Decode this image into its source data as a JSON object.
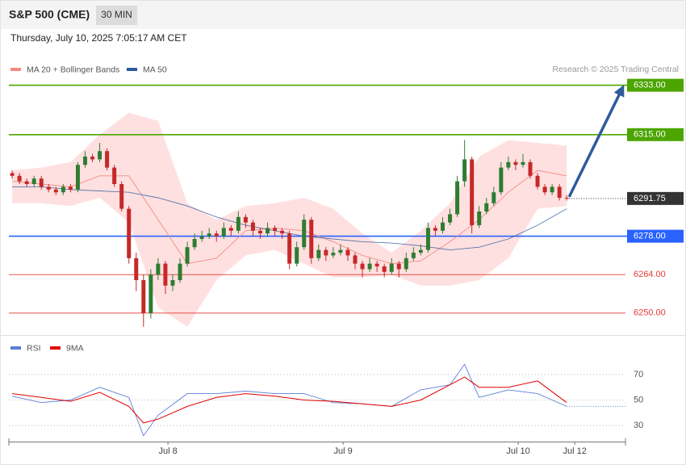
{
  "header": {
    "symbol": "S&P 500 (CME)",
    "interval": "30 MIN",
    "timestamp": "Thursday, July 10, 2025 7:05:17 AM CET"
  },
  "chart_data": [
    {
      "type": "candlestick",
      "legend": [
        {
          "name": "MA 20 + Bollinger Bands",
          "color": "#f28b82"
        },
        {
          "name": "MA 50",
          "color": "#2f5b9c"
        }
      ],
      "credit": "Research © 2025 Trading Central",
      "up_color": "#2e7d32",
      "down_color": "#c62828",
      "xlim": [
        -0.9,
        168.1
      ],
      "ylim": [
        6242,
        6337
      ],
      "x": [
        0,
        2,
        4,
        6,
        8,
        10,
        12,
        14,
        16,
        18,
        20,
        22,
        24,
        26,
        28,
        30,
        32,
        34,
        36,
        38,
        40,
        42,
        44,
        46,
        48,
        50,
        52,
        54,
        56,
        58,
        60,
        62,
        64,
        66,
        68,
        70,
        72,
        74,
        76,
        78,
        80,
        82,
        84,
        86,
        88,
        90,
        92,
        94,
        96,
        98,
        100,
        102,
        104,
        106,
        108,
        110,
        112,
        114,
        116,
        118,
        120,
        122,
        124,
        126,
        128,
        130,
        132,
        134,
        136,
        138,
        140,
        142,
        144,
        146,
        148,
        150,
        152
      ],
      "ohlc": [
        [
          6301,
          6302,
          6299,
          6300
        ],
        [
          6300,
          6301,
          6297,
          6298
        ],
        [
          6298,
          6299,
          6296,
          6297
        ],
        [
          6297,
          6300,
          6296,
          6299
        ],
        [
          6299,
          6300,
          6295,
          6296
        ],
        [
          6296,
          6297,
          6294,
          6295
        ],
        [
          6295,
          6296,
          6293,
          6294
        ],
        [
          6294,
          6297,
          6293,
          6296
        ],
        [
          6296,
          6297,
          6294,
          6295
        ],
        [
          6295,
          6305,
          6294,
          6304
        ],
        [
          6304,
          6309,
          6303,
          6307
        ],
        [
          6307,
          6308,
          6305,
          6306
        ],
        [
          6306,
          6312,
          6305,
          6309
        ],
        [
          6309,
          6310,
          6302,
          6303
        ],
        [
          6303,
          6304,
          6296,
          6297
        ],
        [
          6297,
          6298,
          6287,
          6288
        ],
        [
          6288,
          6289,
          6268,
          6270
        ],
        [
          6270,
          6272,
          6258,
          6262
        ],
        [
          6262,
          6264,
          6245,
          6250
        ],
        [
          6250,
          6266,
          6248,
          6264
        ],
        [
          6264,
          6270,
          6262,
          6268
        ],
        [
          6268,
          6269,
          6257,
          6260
        ],
        [
          6260,
          6264,
          6258,
          6262
        ],
        [
          6262,
          6270,
          6261,
          6268
        ],
        [
          6268,
          6276,
          6267,
          6274
        ],
        [
          6274,
          6279,
          6273,
          6277
        ],
        [
          6277,
          6280,
          6276,
          6278
        ],
        [
          6278,
          6281,
          6277,
          6279
        ],
        [
          6279,
          6280,
          6276,
          6278
        ],
        [
          6278,
          6283,
          6277,
          6281
        ],
        [
          6281,
          6282,
          6278,
          6280
        ],
        [
          6280,
          6287,
          6279,
          6285
        ],
        [
          6285,
          6286,
          6281,
          6283
        ],
        [
          6283,
          6284,
          6278,
          6280
        ],
        [
          6280,
          6281,
          6277,
          6279
        ],
        [
          6279,
          6283,
          6278,
          6281
        ],
        [
          6281,
          6282,
          6278,
          6280
        ],
        [
          6280,
          6281,
          6277,
          6279
        ],
        [
          6279,
          6280,
          6266,
          6268
        ],
        [
          6268,
          6276,
          6267,
          6274
        ],
        [
          6274,
          6286,
          6273,
          6284
        ],
        [
          6284,
          6285,
          6268,
          6270
        ],
        [
          6270,
          6275,
          6269,
          6273
        ],
        [
          6273,
          6274,
          6269,
          6271
        ],
        [
          6271,
          6274,
          6270,
          6272
        ],
        [
          6272,
          6275,
          6271,
          6273
        ],
        [
          6273,
          6274,
          6269,
          6271
        ],
        [
          6271,
          6272,
          6266,
          6268
        ],
        [
          6268,
          6269,
          6263,
          6266
        ],
        [
          6266,
          6270,
          6265,
          6268
        ],
        [
          6268,
          6269,
          6265,
          6267
        ],
        [
          6267,
          6268,
          6263,
          6265
        ],
        [
          6265,
          6270,
          6264,
          6268
        ],
        [
          6268,
          6269,
          6263,
          6266
        ],
        [
          6266,
          6272,
          6265,
          6270
        ],
        [
          6270,
          6274,
          6269,
          6272
        ],
        [
          6272,
          6275,
          6271,
          6273
        ],
        [
          6273,
          6283,
          6272,
          6281
        ],
        [
          6281,
          6282,
          6278,
          6280
        ],
        [
          6280,
          6285,
          6279,
          6283
        ],
        [
          6283,
          6288,
          6282,
          6286
        ],
        [
          6286,
          6300,
          6285,
          6298
        ],
        [
          6298,
          6313,
          6296,
          6306
        ],
        [
          6306,
          6307,
          6279,
          6282
        ],
        [
          6282,
          6289,
          6281,
          6287
        ],
        [
          6287,
          6292,
          6286,
          6290
        ],
        [
          6290,
          6296,
          6289,
          6294
        ],
        [
          6294,
          6305,
          6293,
          6303
        ],
        [
          6303,
          6307,
          6302,
          6305
        ],
        [
          6305,
          6306,
          6302,
          6304
        ],
        [
          6304,
          6308,
          6303,
          6305
        ],
        [
          6305,
          6306,
          6299,
          6300
        ],
        [
          6300,
          6301,
          6295,
          6296
        ],
        [
          6296,
          6297,
          6293,
          6294
        ],
        [
          6294,
          6297,
          6293,
          6296
        ],
        [
          6296,
          6297,
          6291,
          6292
        ],
        [
          6292,
          6293,
          6291,
          6291.75
        ]
      ],
      "ind_x": [
        0,
        8,
        16,
        24,
        32,
        40,
        48,
        56,
        64,
        72,
        80,
        88,
        96,
        104,
        112,
        120,
        128,
        136,
        144,
        152
      ],
      "ma20": [
        6298,
        6297,
        6296,
        6300,
        6300,
        6284,
        6268,
        6270,
        6280,
        6281,
        6280,
        6276,
        6271,
        6268,
        6269,
        6276,
        6284,
        6294,
        6302,
        6300
      ],
      "ma50": [
        6296,
        6296,
        6295,
        6294.5,
        6294,
        6292,
        6289,
        6285,
        6282,
        6280,
        6278,
        6277,
        6276,
        6275.5,
        6274.5,
        6273,
        6274,
        6277,
        6282,
        6288
      ],
      "bb_upper": [
        6302,
        6303,
        6305,
        6315,
        6323,
        6320,
        6290,
        6284,
        6289,
        6290,
        6292,
        6288,
        6279,
        6272,
        6280,
        6290,
        6307,
        6313,
        6312,
        6311
      ],
      "bb_lower": [
        6290,
        6290,
        6289,
        6292,
        6283,
        6252,
        6245,
        6262,
        6271,
        6273,
        6268,
        6263,
        6263,
        6264,
        6260,
        6260,
        6262,
        6270,
        6288,
        6289
      ],
      "band_color": "#ffd6d6",
      "levels": [
        {
          "value": 6333,
          "label": "6333.00",
          "color": "#4ca500",
          "box": true
        },
        {
          "value": 6315,
          "label": "6315.00",
          "color": "#4ca500",
          "box": true
        },
        {
          "value": 6278,
          "label": "6278.00",
          "color": "#2962ff",
          "box": true
        },
        {
          "value": 6264,
          "label": "6264.00",
          "color": "#e53935",
          "box": false
        },
        {
          "value": 6250,
          "label": "6250.00",
          "color": "#e53935",
          "box": false
        }
      ],
      "last_price": 6291.75
    },
    {
      "type": "line",
      "xlim": [
        -0.9,
        168.1
      ],
      "ylim": [
        18,
        82
      ],
      "yticks": [
        70,
        50,
        30
      ],
      "xticks": [
        {
          "value": 42.7,
          "label": "Jul 8"
        },
        {
          "value": 90.7,
          "label": "Jul 9"
        },
        {
          "value": 138.7,
          "label": "Jul 10"
        },
        {
          "value": 154.2,
          "label": "Jul 12"
        }
      ],
      "x": [
        0,
        8,
        16,
        24,
        32,
        36,
        40,
        48,
        56,
        64,
        72,
        80,
        88,
        96,
        104,
        112,
        120,
        124,
        128,
        136,
        144,
        152
      ],
      "series": [
        {
          "name": "RSI",
          "color": "#5b7fd6",
          "values": [
            53,
            48,
            50,
            60,
            52,
            22,
            38,
            55,
            55,
            57,
            55,
            55,
            48,
            47,
            45,
            58,
            62,
            78,
            52,
            58,
            55,
            45
          ]
        },
        {
          "name": "9MA",
          "color": "#e00000",
          "values": [
            55,
            52,
            49,
            56,
            45,
            32,
            35,
            45,
            52,
            55,
            53,
            50,
            49,
            47,
            45,
            50,
            62,
            68,
            60,
            60,
            65,
            48
          ]
        }
      ]
    }
  ]
}
